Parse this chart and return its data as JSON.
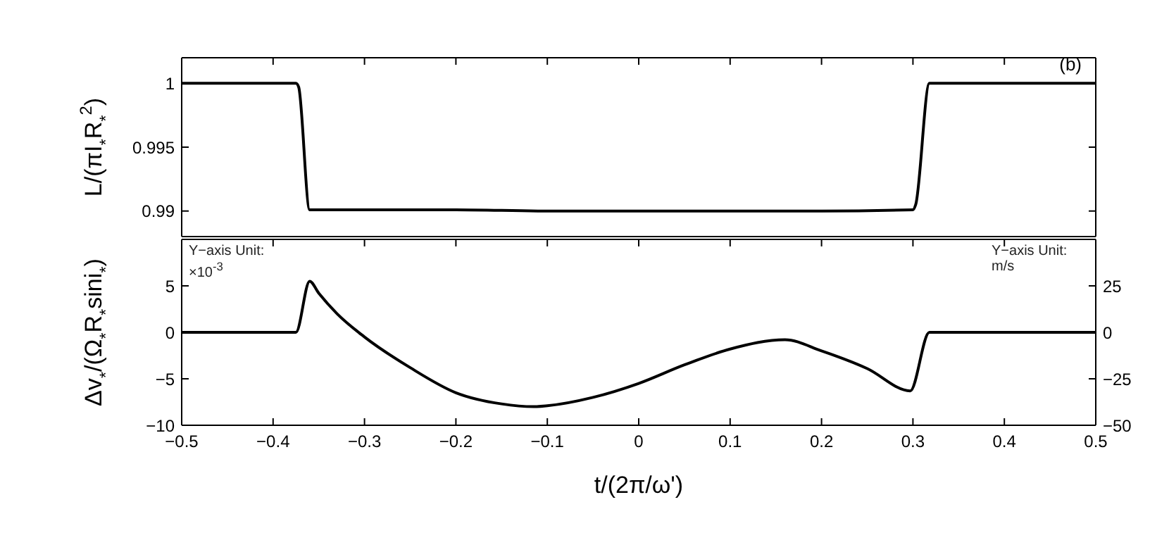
{
  "chart_data": [
    {
      "type": "line",
      "ylabel": "L/(πI$_{*}$R$_{*}$$^{2}$)",
      "annotations": [
        "(b)"
      ],
      "x": [
        -0.5,
        -0.375,
        -0.372,
        -0.36,
        -0.2,
        -0.1,
        0.0,
        0.1,
        0.2,
        0.3,
        0.303,
        0.318,
        0.5
      ],
      "series": [
        {
          "color": "#000000",
          "values": [
            1,
            1,
            0.9997,
            0.9901,
            0.9901,
            0.99,
            0.99,
            0.99,
            0.99,
            0.9901,
            0.9905,
            1,
            1
          ]
        }
      ],
      "xlim": [
        -0.5,
        0.5
      ],
      "xticks": [
        -0.5,
        -0.4,
        -0.3,
        -0.2,
        -0.1,
        0,
        0.1,
        0.2,
        0.3,
        0.4,
        0.5
      ],
      "ylim": [
        0.988,
        1.002
      ],
      "yticks": [
        0.99,
        0.995,
        1
      ],
      "tick_labels": "y",
      "grid": false,
      "legend": false,
      "marker": "none",
      "line_style": "solid"
    },
    {
      "type": "line",
      "xlabel": "t/(2π/ω')",
      "ylabel": "Δv$_{*}$/(Ω$_{*}$R$_{*}$sini$_{*}$)",
      "annotations": [
        "Y−axis Unit:",
        "×10$^{-3}$",
        "Y−axis Unit:",
        "m/s"
      ],
      "x": [
        -0.5,
        -0.375,
        -0.36,
        -0.35,
        -0.33,
        -0.3,
        -0.25,
        -0.2,
        -0.15,
        -0.115,
        -0.1,
        -0.05,
        0,
        0.05,
        0.1,
        0.16,
        0.2,
        0.25,
        0.297,
        0.318,
        0.5
      ],
      "series": [
        {
          "color": "#000000",
          "values": [
            0,
            0,
            5.5,
            4.2,
            2,
            -0.5,
            -3.8,
            -6.5,
            -7.7,
            -8,
            -7.9,
            -7,
            -5.5,
            -3.5,
            -1.8,
            -0.8,
            -2,
            -3.9,
            -6.3,
            0,
            0
          ]
        }
      ],
      "xlim": [
        -0.5,
        0.5
      ],
      "xticks": [
        -0.5,
        -0.4,
        -0.3,
        -0.2,
        -0.1,
        0,
        0.1,
        0.2,
        0.3,
        0.4,
        0.5
      ],
      "ylim": [
        -10,
        10
      ],
      "yticks": [
        -10,
        -5,
        0,
        5
      ],
      "y2lim": [
        -50,
        50
      ],
      "y2ticks": [
        -50,
        -25,
        0,
        25
      ],
      "grid": false,
      "legend": false,
      "marker": "none",
      "line_style": "solid"
    }
  ]
}
